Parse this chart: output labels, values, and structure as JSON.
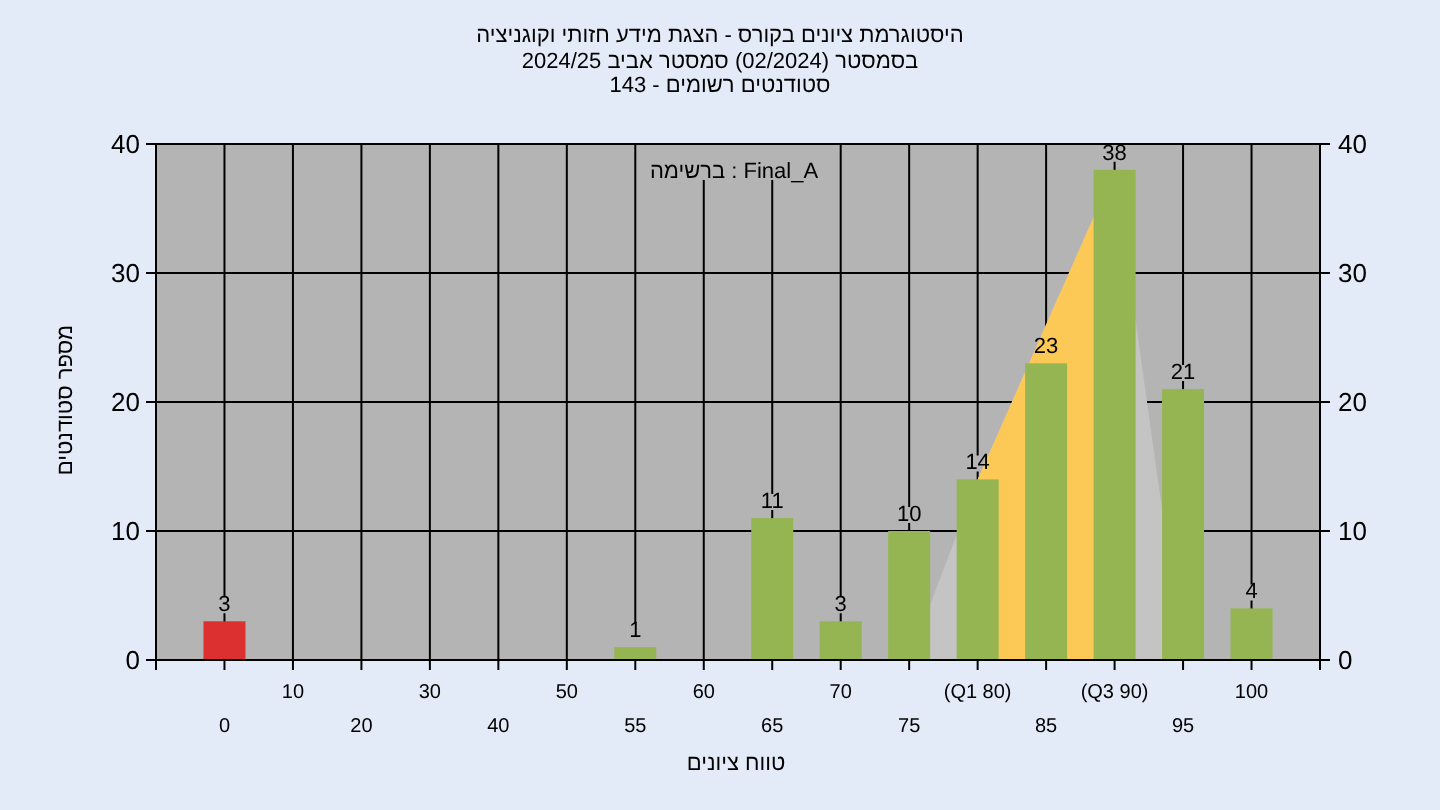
{
  "chart_data": {
    "type": "bar",
    "title": "היסטוגרמת ציונים בקורס - הצגת מידע חזותי וקוגניציה",
    "subtitle": "בסמסטר (02/2024) סמסטר אביב 2024/25",
    "annotations": [
      "סטודנטים רשומים - 143",
      "ברשימה : Final_A"
    ],
    "xlabel": "טווח ציונים",
    "ylabel": "מספר סטודנטים",
    "categories": [
      "0",
      "10",
      "20",
      "30",
      "40",
      "50",
      "55",
      "60",
      "65",
      "70",
      "75",
      "(Q1 80)",
      "85",
      "(Q3 90)",
      "95",
      "100"
    ],
    "series": [
      {
        "type": "area",
        "color": "#c4c4c4",
        "values": [
          null,
          null,
          null,
          null,
          null,
          null,
          null,
          null,
          null,
          null,
          0,
          14,
          26,
          38,
          0,
          null
        ]
      },
      {
        "type": "area",
        "color": "#fcc956",
        "values": [
          null,
          null,
          null,
          null,
          null,
          null,
          null,
          null,
          null,
          null,
          null,
          14,
          26,
          38,
          null,
          null
        ]
      },
      {
        "colors": [
          "#dc2f2f",
          null,
          null,
          null,
          null,
          null,
          "#95b552",
          null,
          "#95b552",
          "#95b552",
          "#95b552",
          "#95b552",
          "#95b552",
          "#95b552",
          "#95b552",
          "#95b552"
        ],
        "values": [
          3,
          0,
          0,
          0,
          0,
          0,
          1,
          0,
          11,
          3,
          10,
          14,
          23,
          38,
          21,
          4
        ],
        "value_labels": [
          "3",
          null,
          null,
          null,
          null,
          null,
          "1",
          null,
          "11",
          "3",
          "10",
          "14",
          "23",
          "38",
          "21",
          "4"
        ]
      }
    ],
    "ylim": [
      0,
      40
    ],
    "yticks": [
      0,
      10,
      20,
      30,
      40
    ],
    "y2lim": [
      0,
      40
    ],
    "y2ticks": [
      0,
      10,
      20,
      30,
      40
    ],
    "grid": true
  }
}
